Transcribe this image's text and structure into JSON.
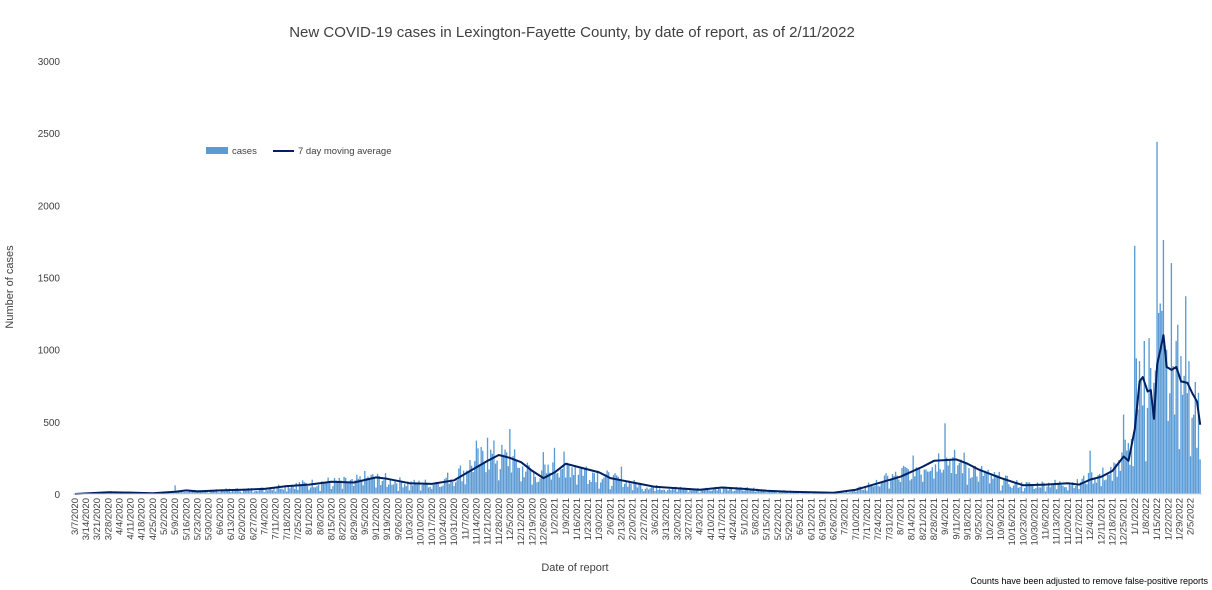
{
  "chart_data": {
    "type": "bar",
    "title": "New COVID-19 cases in Lexington-Fayette County, by date of report, as of 2/11/2022",
    "xlabel": "Date of report",
    "ylabel": "Number of cases",
    "note": "Counts have been adjusted to remove false-positive reports",
    "ylim": [
      0,
      3000
    ],
    "yticks": [
      0,
      500,
      1000,
      1500,
      2000,
      2500,
      3000
    ],
    "grid": false,
    "legend_position": "top-left",
    "start_date": "3/7/2020",
    "end_date": "2/11/2022",
    "xtick_labels": [
      "3/7/2020",
      "3/14/2020",
      "3/21/2020",
      "3/28/2020",
      "4/4/2020",
      "4/11/2020",
      "4/18/2020",
      "4/25/2020",
      "5/2/2020",
      "5/9/2020",
      "5/16/2020",
      "5/23/2020",
      "5/30/2020",
      "6/6/2020",
      "6/13/2020",
      "6/20/2020",
      "6/27/2020",
      "7/4/2020",
      "7/11/2020",
      "7/18/2020",
      "7/25/2020",
      "8/1/2020",
      "8/8/2020",
      "8/15/2020",
      "8/22/2020",
      "8/29/2020",
      "9/5/2020",
      "9/12/2020",
      "9/19/2020",
      "9/26/2020",
      "10/3/2020",
      "10/10/2020",
      "10/17/2020",
      "10/24/2020",
      "10/31/2020",
      "11/7/2020",
      "11/14/2020",
      "11/21/2020",
      "11/28/2020",
      "12/5/2020",
      "12/12/2020",
      "12/19/2020",
      "12/26/2020",
      "1/2/2021",
      "1/9/2021",
      "1/16/2021",
      "1/23/2021",
      "1/30/2021",
      "2/6/2021",
      "2/13/2021",
      "2/20/2021",
      "2/27/2021",
      "3/6/2021",
      "3/13/2021",
      "3/20/2021",
      "3/27/2021",
      "4/3/2021",
      "4/10/2021",
      "4/17/2021",
      "4/24/2021",
      "5/1/2021",
      "5/8/2021",
      "5/15/2021",
      "5/22/2021",
      "5/29/2021",
      "6/5/2021",
      "6/12/2021",
      "6/19/2021",
      "6/26/2021",
      "7/3/2021",
      "7/10/2021",
      "7/17/2021",
      "7/24/2021",
      "7/31/2021",
      "8/7/2021",
      "8/14/2021",
      "8/21/2021",
      "8/28/2021",
      "9/4/2021",
      "9/11/2021",
      "9/18/2021",
      "9/25/2021",
      "10/2/2021",
      "10/9/2021",
      "10/16/2021",
      "10/23/2021",
      "10/30/2021",
      "11/6/2021",
      "11/13/2021",
      "11/20/2021",
      "11/27/2021",
      "12/4/2021",
      "12/11/2021",
      "12/18/2021",
      "12/25/2021",
      "1/1/2022",
      "1/8/2022",
      "1/15/2022",
      "1/22/2022",
      "1/29/2022",
      "2/5/2022"
    ],
    "series": [
      {
        "name": "cases",
        "kind": "bar",
        "color": "#5b9bd5",
        "note": "one bar per day; average daily level read from the chart, one value per week starting 3/7/2020, with spikes listed separately",
        "weekly_level": [
          2,
          5,
          10,
          15,
          12,
          8,
          5,
          4,
          6,
          10,
          20,
          25,
          22,
          28,
          30,
          30,
          35,
          45,
          55,
          65,
          75,
          80,
          85,
          80,
          85,
          100,
          110,
          95,
          85,
          75,
          70,
          75,
          90,
          130,
          180,
          230,
          260,
          270,
          230,
          200,
          150,
          120,
          180,
          210,
          185,
          160,
          140,
          110,
          95,
          80,
          60,
          45,
          40,
          38,
          35,
          30,
          35,
          40,
          42,
          40,
          35,
          28,
          25,
          20,
          18,
          16,
          14,
          12,
          10,
          12,
          35,
          70,
          110,
          130,
          170,
          210,
          240,
          250,
          230,
          200,
          160,
          130,
          100,
          80,
          65,
          65,
          70,
          75,
          70,
          80,
          110,
          130,
          140,
          170,
          280,
          700,
          750,
          950,
          850,
          700,
          450
        ],
        "spikes": [
          {
            "date": "5/9/2020",
            "value": 60
          },
          {
            "date": "9/5/2020",
            "value": 160
          },
          {
            "date": "11/14/2020",
            "value": 370
          },
          {
            "date": "11/21/2020",
            "value": 390
          },
          {
            "date": "12/5/2020",
            "value": 450
          },
          {
            "date": "12/26/2020",
            "value": 290
          },
          {
            "date": "1/2/2021",
            "value": 320
          },
          {
            "date": "2/13/2021",
            "value": 190
          },
          {
            "date": "9/4/2021",
            "value": 490
          },
          {
            "date": "12/4/2021",
            "value": 300
          },
          {
            "date": "12/25/2021",
            "value": 550
          },
          {
            "date": "1/1/2022",
            "value": 1720
          },
          {
            "date": "1/2/2022",
            "value": 940
          },
          {
            "date": "1/4/2022",
            "value": 920
          },
          {
            "date": "1/7/2022",
            "value": 1060
          },
          {
            "date": "1/10/2022",
            "value": 1080
          },
          {
            "date": "1/12/2022",
            "value": 600
          },
          {
            "date": "1/15/2022",
            "value": 2440
          },
          {
            "date": "1/17/2022",
            "value": 1320
          },
          {
            "date": "1/19/2022",
            "value": 1760
          },
          {
            "date": "1/21/2022",
            "value": 1000
          },
          {
            "date": "1/24/2022",
            "value": 1600
          },
          {
            "date": "1/27/2022",
            "value": 1060
          },
          {
            "date": "2/2/2022",
            "value": 1370
          },
          {
            "date": "2/4/2022",
            "value": 920
          },
          {
            "date": "2/9/2022",
            "value": 320
          },
          {
            "date": "2/11/2022",
            "value": 240
          }
        ]
      },
      {
        "name": "7 day moving average",
        "kind": "line",
        "color": "#002060",
        "points": [
          {
            "date": "3/7/2020",
            "value": 0
          },
          {
            "date": "3/28/2020",
            "value": 12
          },
          {
            "date": "4/11/2020",
            "value": 10
          },
          {
            "date": "4/25/2020",
            "value": 5
          },
          {
            "date": "5/9/2020",
            "value": 15
          },
          {
            "date": "5/16/2020",
            "value": 25
          },
          {
            "date": "5/23/2020",
            "value": 18
          },
          {
            "date": "6/6/2020",
            "value": 25
          },
          {
            "date": "6/20/2020",
            "value": 30
          },
          {
            "date": "7/4/2020",
            "value": 35
          },
          {
            "date": "7/18/2020",
            "value": 55
          },
          {
            "date": "8/1/2020",
            "value": 65
          },
          {
            "date": "8/15/2020",
            "value": 85
          },
          {
            "date": "8/29/2020",
            "value": 80
          },
          {
            "date": "9/12/2020",
            "value": 115
          },
          {
            "date": "9/19/2020",
            "value": 105
          },
          {
            "date": "10/3/2020",
            "value": 75
          },
          {
            "date": "10/17/2020",
            "value": 70
          },
          {
            "date": "10/31/2020",
            "value": 95
          },
          {
            "date": "11/7/2020",
            "value": 140
          },
          {
            "date": "11/21/2020",
            "value": 230
          },
          {
            "date": "11/28/2020",
            "value": 270
          },
          {
            "date": "12/5/2020",
            "value": 250
          },
          {
            "date": "12/12/2020",
            "value": 220
          },
          {
            "date": "12/19/2020",
            "value": 160
          },
          {
            "date": "12/26/2020",
            "value": 110
          },
          {
            "date": "1/2/2021",
            "value": 150
          },
          {
            "date": "1/9/2021",
            "value": 210
          },
          {
            "date": "1/16/2021",
            "value": 190
          },
          {
            "date": "1/23/2021",
            "value": 170
          },
          {
            "date": "1/30/2021",
            "value": 150
          },
          {
            "date": "2/6/2021",
            "value": 110
          },
          {
            "date": "2/13/2021",
            "value": 95
          },
          {
            "date": "2/20/2021",
            "value": 80
          },
          {
            "date": "3/6/2021",
            "value": 50
          },
          {
            "date": "3/20/2021",
            "value": 40
          },
          {
            "date": "4/3/2021",
            "value": 30
          },
          {
            "date": "4/17/2021",
            "value": 45
          },
          {
            "date": "5/1/2021",
            "value": 35
          },
          {
            "date": "5/15/2021",
            "value": 22
          },
          {
            "date": "5/29/2021",
            "value": 16
          },
          {
            "date": "6/12/2021",
            "value": 12
          },
          {
            "date": "6/26/2021",
            "value": 8
          },
          {
            "date": "7/10/2021",
            "value": 30
          },
          {
            "date": "7/24/2021",
            "value": 75
          },
          {
            "date": "8/7/2021",
            "value": 120
          },
          {
            "date": "8/21/2021",
            "value": 190
          },
          {
            "date": "8/28/2021",
            "value": 230
          },
          {
            "date": "9/4/2021",
            "value": 235
          },
          {
            "date": "9/11/2021",
            "value": 240
          },
          {
            "date": "9/18/2021",
            "value": 210
          },
          {
            "date": "9/25/2021",
            "value": 170
          },
          {
            "date": "10/9/2021",
            "value": 110
          },
          {
            "date": "10/23/2021",
            "value": 60
          },
          {
            "date": "11/6/2021",
            "value": 65
          },
          {
            "date": "11/20/2021",
            "value": 75
          },
          {
            "date": "11/27/2021",
            "value": 65
          },
          {
            "date": "12/4/2021",
            "value": 100
          },
          {
            "date": "12/11/2021",
            "value": 120
          },
          {
            "date": "12/18/2021",
            "value": 160
          },
          {
            "date": "12/25/2021",
            "value": 260
          },
          {
            "date": "12/28/2021",
            "value": 230
          },
          {
            "date": "1/1/2022",
            "value": 450
          },
          {
            "date": "1/4/2022",
            "value": 780
          },
          {
            "date": "1/6/2022",
            "value": 810
          },
          {
            "date": "1/9/2022",
            "value": 710
          },
          {
            "date": "1/11/2022",
            "value": 720
          },
          {
            "date": "1/13/2022",
            "value": 520
          },
          {
            "date": "1/15/2022",
            "value": 900
          },
          {
            "date": "1/17/2022",
            "value": 1000
          },
          {
            "date": "1/19/2022",
            "value": 1100
          },
          {
            "date": "1/21/2022",
            "value": 880
          },
          {
            "date": "1/24/2022",
            "value": 860
          },
          {
            "date": "1/27/2022",
            "value": 880
          },
          {
            "date": "1/30/2022",
            "value": 780
          },
          {
            "date": "2/3/2022",
            "value": 770
          },
          {
            "date": "2/6/2022",
            "value": 700
          },
          {
            "date": "2/9/2022",
            "value": 640
          },
          {
            "date": "2/11/2022",
            "value": 480
          }
        ]
      }
    ]
  }
}
